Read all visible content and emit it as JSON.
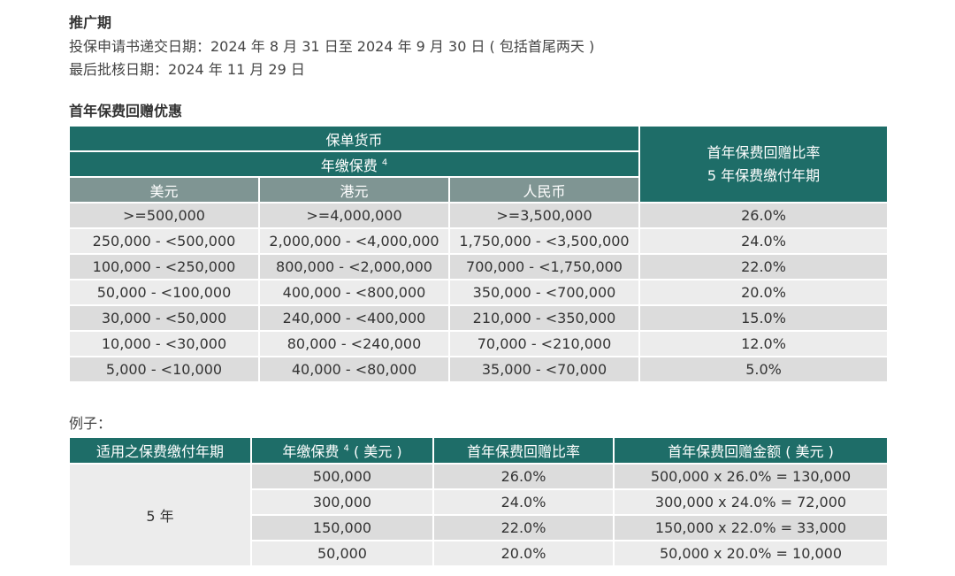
{
  "promo": {
    "title": "推广期",
    "line1": "投保申请书递交日期：2024 年 8 月 31 日至 2024 年 9 月 30 日 ( 包括首尾两天 )",
    "line2": "最后批核日期：2024 年 11 月 29 日"
  },
  "offer": {
    "title": "首年保费回赠优惠",
    "currency_header": "保单货币",
    "premium_header": "年缴保费",
    "footnote": "4",
    "rate_header_l1": "首年保费回赠比率",
    "rate_header_l2": "5 年保费缴付年期",
    "col_usd": "美元",
    "col_hkd": "港元",
    "col_rmb": "人民币",
    "rows": [
      {
        "usd": ">=500,000",
        "hkd": ">=4,000,000",
        "rmb": ">=3,500,000",
        "rate": "26.0%"
      },
      {
        "usd": "250,000 - <500,000",
        "hkd": "2,000,000 - <4,000,000",
        "rmb": "1,750,000 - <3,500,000",
        "rate": "24.0%"
      },
      {
        "usd": "100,000 - <250,000",
        "hkd": "800,000 - <2,000,000",
        "rmb": "700,000 - <1,750,000",
        "rate": "22.0%"
      },
      {
        "usd": "50,000 - <100,000",
        "hkd": "400,000 - <800,000",
        "rmb": "350,000 - <700,000",
        "rate": "20.0%"
      },
      {
        "usd": "30,000 - <50,000",
        "hkd": "240,000 - <400,000",
        "rmb": "210,000 - <350,000",
        "rate": "15.0%"
      },
      {
        "usd": "10,000 - <30,000",
        "hkd": "80,000 - <240,000",
        "rmb": "70,000 - <210,000",
        "rate": "12.0%"
      },
      {
        "usd": "5,000 - <10,000",
        "hkd": "40,000 - <80,000",
        "rmb": "35,000 - <70,000",
        "rate": "5.0%"
      }
    ]
  },
  "example": {
    "title": "例子：",
    "h_term": "适用之保费缴付年期",
    "h_premium": "年缴保费",
    "h_premium_unit": "( 美元 )",
    "footnote": "4",
    "h_rate": "首年保费回赠比率",
    "h_amount": "首年保费回赠金额 ( 美元 )",
    "term": "5 年",
    "rows": [
      {
        "premium": "500,000",
        "rate": "26.0%",
        "amount": "500,000 x 26.0% = 130,000"
      },
      {
        "premium": "300,000",
        "rate": "24.0%",
        "amount": "300,000 x 24.0% = 72,000"
      },
      {
        "premium": "150,000",
        "rate": "22.0%",
        "amount": "150,000 x 22.0% = 33,000"
      },
      {
        "premium": "50,000",
        "rate": "20.0%",
        "amount": "50,000 x 20.0% = 10,000"
      }
    ]
  }
}
